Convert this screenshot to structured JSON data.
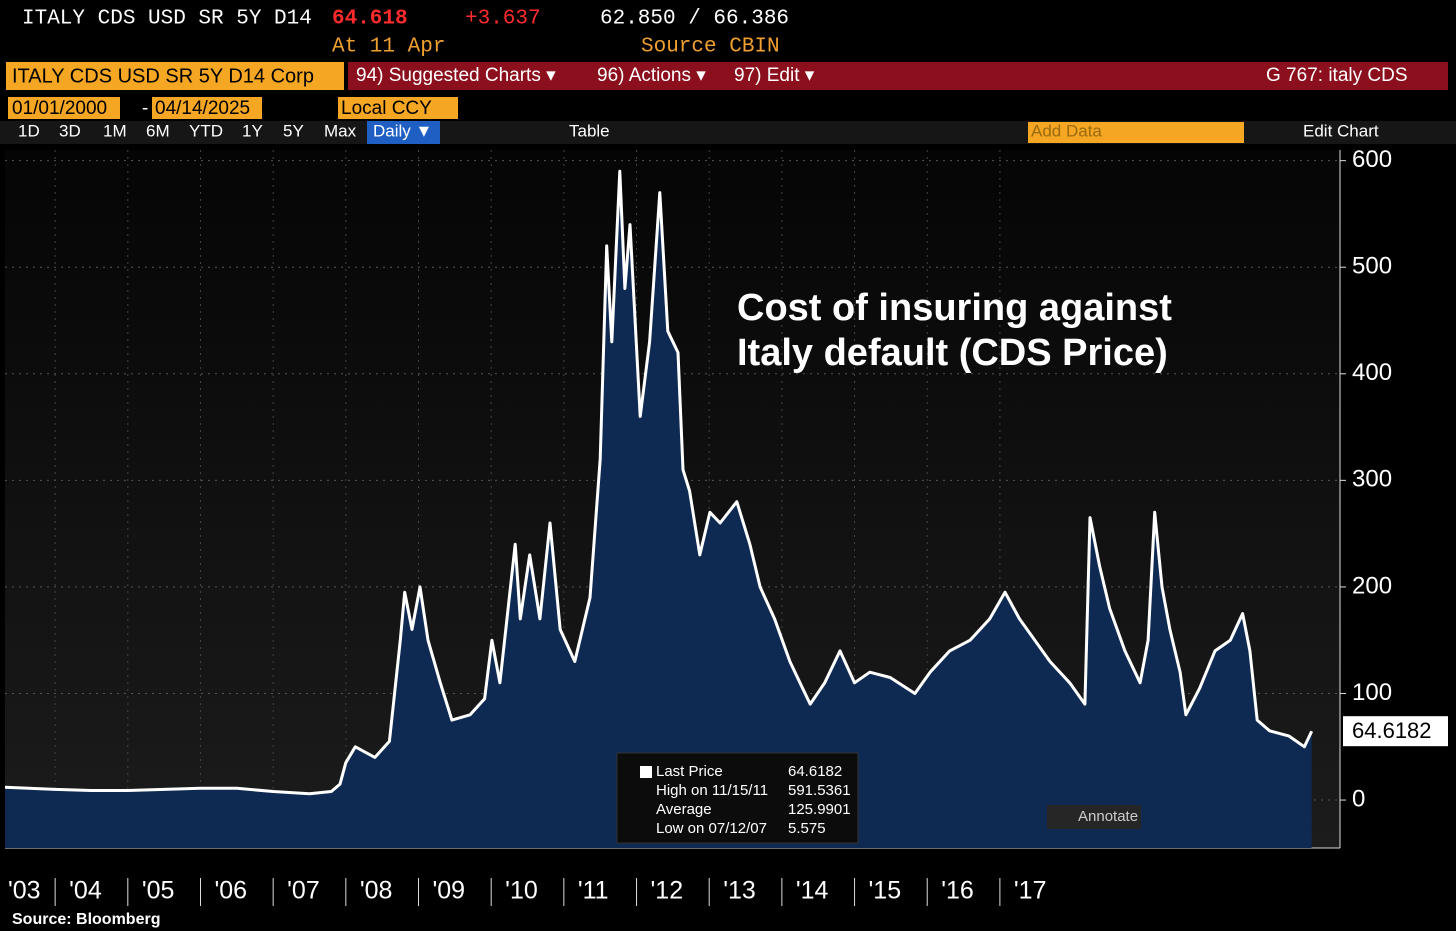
{
  "ui": {
    "header": {
      "ticker": "ITALY CDS USD SR 5Y D14",
      "price": "64.618",
      "change": "+3.637",
      "range": "62.850 / 66.386",
      "at": "At 11 Apr",
      "source": "Source CBIN"
    },
    "toolbar": {
      "security": "ITALY CDS USD SR 5Y D14 Corp",
      "menus": [
        "94) Suggested Charts ▾",
        "96) Actions ▾",
        "97) Edit ▾"
      ],
      "page": "G 767: italy CDS"
    },
    "dates": {
      "start": "01/01/2000",
      "separator": "-",
      "end": "04/14/2025",
      "currency": "Local CCY"
    },
    "periods": [
      "1D",
      "3D",
      "1M",
      "6M",
      "YTD",
      "1Y",
      "5Y",
      "Max"
    ],
    "frequency": "Daily ▼",
    "table": "Table",
    "add_data": "Add Data",
    "edit_chart": "Edit Chart",
    "annotate": "Annotate",
    "footer": "Source:  Bloomberg"
  },
  "chart_data": {
    "type": "area",
    "annotation": [
      "Cost of insuring against",
      "Italy default (CDS Price)"
    ],
    "color": "#ffffff",
    "fill": "#0f2a52",
    "x": [
      2003.31,
      2004.0,
      2004.5,
      2005.0,
      2005.5,
      2006.0,
      2006.5,
      2007.0,
      2007.5,
      2007.8,
      2007.92,
      2008.0,
      2008.13,
      2008.4,
      2008.6,
      2008.75,
      2008.81,
      2008.91,
      2009.02,
      2009.13,
      2009.3,
      2009.46,
      2009.71,
      2009.91,
      2010.01,
      2010.12,
      2010.33,
      2010.4,
      2010.53,
      2010.67,
      2010.81,
      2010.95,
      2011.15,
      2011.36,
      2011.5,
      2011.59,
      2011.66,
      2011.77,
      2011.84,
      2011.91,
      2012.05,
      2012.18,
      2012.32,
      2012.43,
      2012.57,
      2012.64,
      2012.73,
      2012.87,
      2013.01,
      2013.15,
      2013.38,
      2013.56,
      2013.7,
      2013.9,
      2014.11,
      2014.25,
      2014.39,
      2014.59,
      2014.8,
      2015.0,
      2015.21,
      2015.49,
      2015.83,
      2016.04,
      2016.31,
      2016.59,
      2016.86,
      2017.07,
      2017.27,
      2017.48,
      2017.69,
      2017.96,
      2018.17,
      2018.24,
      2018.37,
      2018.51,
      2018.72,
      2018.93,
      2019.04,
      2019.13,
      2019.23,
      2019.34,
      2019.48,
      2019.56,
      2019.75,
      2019.96,
      2020.17,
      2020.34,
      2020.44,
      2020.54,
      2020.71,
      2020.98,
      2021.19,
      2021.29
    ],
    "values": [
      12,
      10,
      9,
      9,
      10,
      11,
      11,
      8,
      6,
      8,
      15,
      35,
      50,
      40,
      55,
      150,
      195,
      160,
      200,
      150,
      110,
      75,
      80,
      95,
      150,
      110,
      240,
      170,
      230,
      170,
      260,
      160,
      130,
      190,
      320,
      520,
      430,
      590,
      480,
      540,
      360,
      430,
      570,
      440,
      420,
      310,
      290,
      230,
      270,
      260,
      280,
      240,
      200,
      170,
      130,
      110,
      90,
      110,
      140,
      110,
      120,
      115,
      100,
      120,
      140,
      150,
      170,
      195,
      170,
      150,
      130,
      110,
      90,
      265,
      220,
      180,
      140,
      110,
      150,
      270,
      200,
      160,
      120,
      80,
      105,
      140,
      150,
      175,
      140,
      75,
      65,
      60,
      50,
      64.6182
    ],
    "xlim": [
      2003.31,
      2021.68
    ],
    "xticks": [
      {
        "value": 2003,
        "label": "'03"
      },
      {
        "value": 2004,
        "label": "'04"
      },
      {
        "value": 2005,
        "label": "'05"
      },
      {
        "value": 2006,
        "label": "'06"
      },
      {
        "value": 2007,
        "label": "'07"
      },
      {
        "value": 2008,
        "label": "'08"
      },
      {
        "value": 2009,
        "label": "'09"
      },
      {
        "value": 2010,
        "label": "'10"
      },
      {
        "value": 2011,
        "label": "'11"
      },
      {
        "value": 2012,
        "label": "'12"
      },
      {
        "value": 2013,
        "label": "'13"
      },
      {
        "value": 2014,
        "label": "'14"
      },
      {
        "value": 2015,
        "label": "'15"
      },
      {
        "value": 2016,
        "label": "'16"
      },
      {
        "value": 2017,
        "label": "'17"
      }
    ],
    "ylim": [
      -45,
      610
    ],
    "yticks": [
      0,
      100,
      200,
      300,
      400,
      500,
      600
    ],
    "grid": true,
    "stats": [
      {
        "label": "Last Price",
        "value": 64.6182
      },
      {
        "label": "High on 11/15/11",
        "value": 591.5361
      },
      {
        "label": "Average",
        "value": 125.9901
      },
      {
        "label": "Low on 07/12/07",
        "value": 5.575
      }
    ]
  }
}
